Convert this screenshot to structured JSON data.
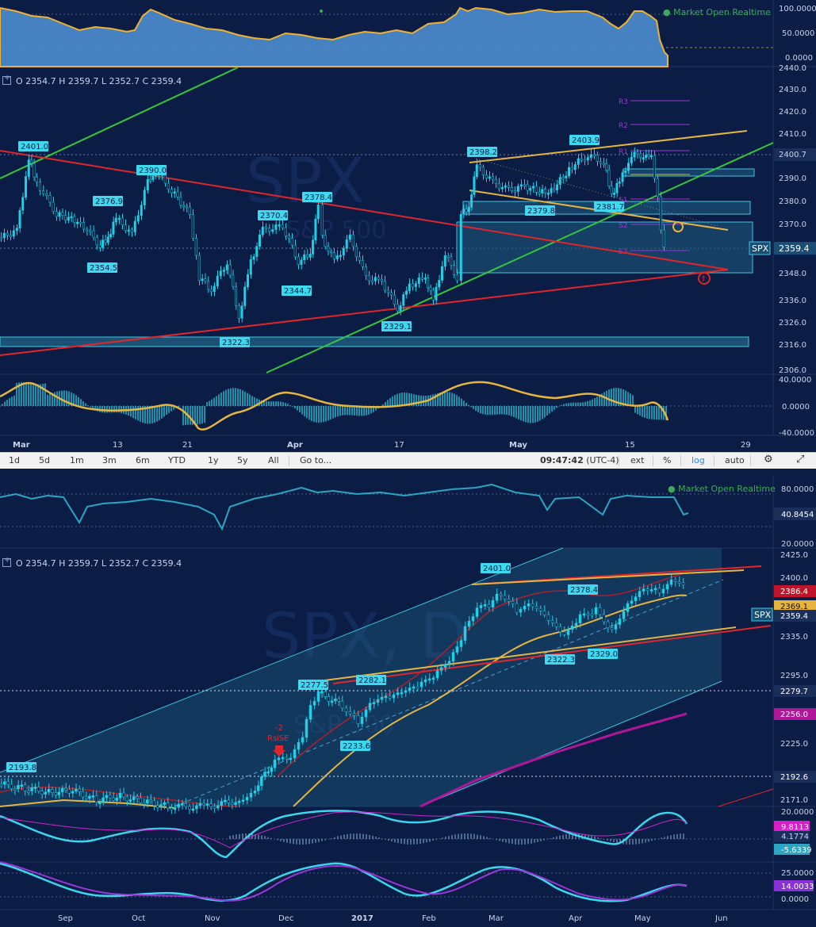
{
  "status": {
    "dot": "●",
    "text": "Market Open  Realtime"
  },
  "top_chart": {
    "ohlc": "O 2354.7  H 2359.7  L 2352.7  C 2359.4",
    "watermark_symbol": "SPX",
    "watermark_sub": "S&P 500",
    "price_axis": [
      "2440.0",
      "2430.0",
      "2420.0",
      "2410.0",
      "2400.7",
      "2390.0",
      "2380.0",
      "2370.0",
      "2348.0",
      "2336.0",
      "2326.0",
      "2316.0",
      "2306.0"
    ],
    "symbol_tag": "SPX",
    "symbol_price": "2359.4",
    "price_labels": [
      {
        "id": "l2401",
        "text": "2401.0"
      },
      {
        "id": "l2376",
        "text": "2376.9"
      },
      {
        "id": "l2354",
        "text": "2354.5"
      },
      {
        "id": "l2390",
        "text": "2390.0"
      },
      {
        "id": "l2370",
        "text": "2370.4"
      },
      {
        "id": "l2378",
        "text": "2378.4"
      },
      {
        "id": "l2344",
        "text": "2344.7"
      },
      {
        "id": "l2322",
        "text": "2322.3"
      },
      {
        "id": "l2329",
        "text": "2329.1"
      },
      {
        "id": "l2398",
        "text": "2398.2"
      },
      {
        "id": "l2379",
        "text": "2379.8"
      },
      {
        "id": "l2403",
        "text": "2403.9"
      },
      {
        "id": "l2381",
        "text": "2381.7"
      }
    ],
    "pivots": [
      "R3",
      "R2",
      "R1",
      "P",
      "S1",
      "S2",
      "S3"
    ],
    "pct_axis": [
      "100.0000",
      "50.0000",
      "0.0000"
    ],
    "osc_axis": [
      "40.0000",
      "0.0000",
      "-40.0000"
    ],
    "date_axis": [
      {
        "text": "Mar",
        "bold": true
      },
      {
        "text": "13",
        "bold": false
      },
      {
        "text": "21",
        "bold": false
      },
      {
        "text": "Apr",
        "bold": true
      },
      {
        "text": "17",
        "bold": false
      },
      {
        "text": "May",
        "bold": true
      },
      {
        "text": "15",
        "bold": false
      },
      {
        "text": "29",
        "bold": false
      }
    ]
  },
  "toolbar": {
    "ranges": [
      "1d",
      "5d",
      "1m",
      "3m",
      "6m",
      "YTD",
      "1y",
      "5y",
      "All"
    ],
    "goto": "Go to...",
    "time": "09:47:42",
    "tz": "(UTC-4)",
    "ext": "ext",
    "pct": "%",
    "log": "log",
    "auto": "auto",
    "gear": "⚙",
    "expand": "⤢"
  },
  "bottom_chart": {
    "ohlc": "O 2354.7  H 2359.7  L 2352.7  C 2359.4",
    "watermark_symbol": "SPX, D",
    "watermark_sub": "S&P 500",
    "rsi_axis": [
      "80.0000",
      "40.8454",
      "20.0000"
    ],
    "price_axis": [
      "2425.0",
      "2400.0",
      "2386.4",
      "2369.1",
      "2359.4",
      "2335.0",
      "2295.0",
      "2279.7",
      "2256.0",
      "2225.0",
      "2192.6",
      "2171.0"
    ],
    "symbol_tag": "SPX",
    "price_labels": [
      {
        "id": "b2401",
        "text": "2401.0"
      },
      {
        "id": "b2378",
        "text": "2378.4"
      },
      {
        "id": "b2322",
        "text": "2322.3"
      },
      {
        "id": "b2329",
        "text": "2329.0"
      },
      {
        "id": "b2277",
        "text": "2277.5"
      },
      {
        "id": "b2282",
        "text": "2282.1"
      },
      {
        "id": "b2233",
        "text": "2233.6"
      },
      {
        "id": "b2193",
        "text": "2193.8"
      }
    ],
    "rsise_label": [
      "-2",
      "RsiSE"
    ],
    "macd_axis": [
      "20.0000",
      "9.8113",
      "4.1774",
      "-5.6339"
    ],
    "stoch_axis": [
      "25.0000",
      "14.0033",
      "0.0000"
    ],
    "date_axis": [
      {
        "text": "Sep",
        "bold": false
      },
      {
        "text": "Oct",
        "bold": false
      },
      {
        "text": "Nov",
        "bold": false
      },
      {
        "text": "Dec",
        "bold": false
      },
      {
        "text": "2017",
        "bold": true
      },
      {
        "text": "Feb",
        "bold": false
      },
      {
        "text": "Mar",
        "bold": false
      },
      {
        "text": "Apr",
        "bold": false
      },
      {
        "text": "May",
        "bold": false
      },
      {
        "text": "Jun",
        "bold": false
      }
    ]
  },
  "colors": {
    "bg": "#0b1d44",
    "candle": "#21cfe6",
    "accent": "#3ec6e0",
    "yellow": "#e6b440",
    "red": "#e0262a",
    "green": "#36c83a",
    "magenta": "#b0169a"
  }
}
